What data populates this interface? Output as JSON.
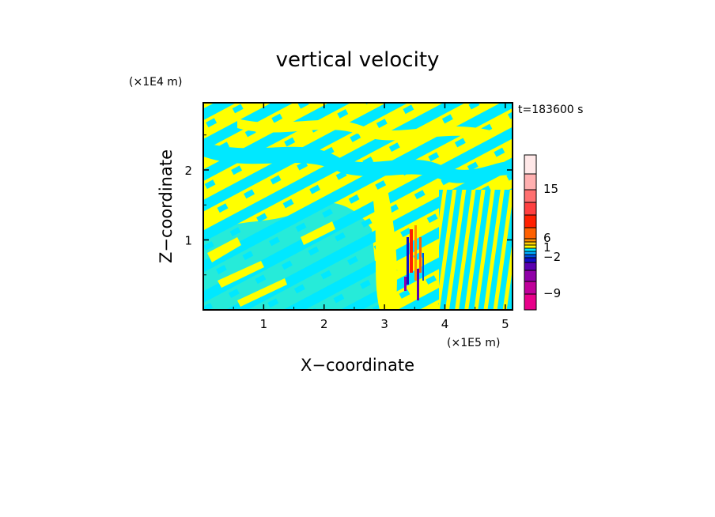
{
  "chart_data": {
    "type": "heatmap",
    "title": "vertical velocity",
    "time_label": "t=183600 s",
    "xlabel": "X−coordinate",
    "ylabel": "Z−coordinate",
    "x_scale_label": "(×1E5 m)",
    "y_scale_label": "(×1E4 m)",
    "xlim": [
      0.0,
      5.12
    ],
    "ylim": [
      0.0,
      2.96
    ],
    "x_ticks": [
      1,
      2,
      3,
      4,
      5
    ],
    "y_ticks": [
      1,
      2
    ],
    "grid": false,
    "colorbar": {
      "position": "right",
      "levels": [
        {
          "color": "#e8008a"
        },
        {
          "color": "#c0009a"
        },
        {
          "color": "#9000a8"
        },
        {
          "color": "#5a00b0"
        },
        {
          "color": "#1010c8"
        },
        {
          "color": "#0050e0"
        },
        {
          "color": "#00aaff"
        },
        {
          "color": "#00e8ff"
        },
        {
          "color": "#ffff00"
        },
        {
          "color": "#ffd000"
        },
        {
          "color": "#ff9000"
        },
        {
          "color": "#ff6000"
        },
        {
          "color": "#ff2000"
        },
        {
          "color": "#ff4040"
        },
        {
          "color": "#ff7070"
        },
        {
          "color": "#ffb0b0"
        },
        {
          "color": "#ffe8e8"
        }
      ],
      "tick_labels": [
        "−9",
        "−2",
        "1",
        "6",
        "15"
      ]
    },
    "dominant_colors": {
      "positive": "#ffff00",
      "negative": "#00e8ff"
    }
  }
}
